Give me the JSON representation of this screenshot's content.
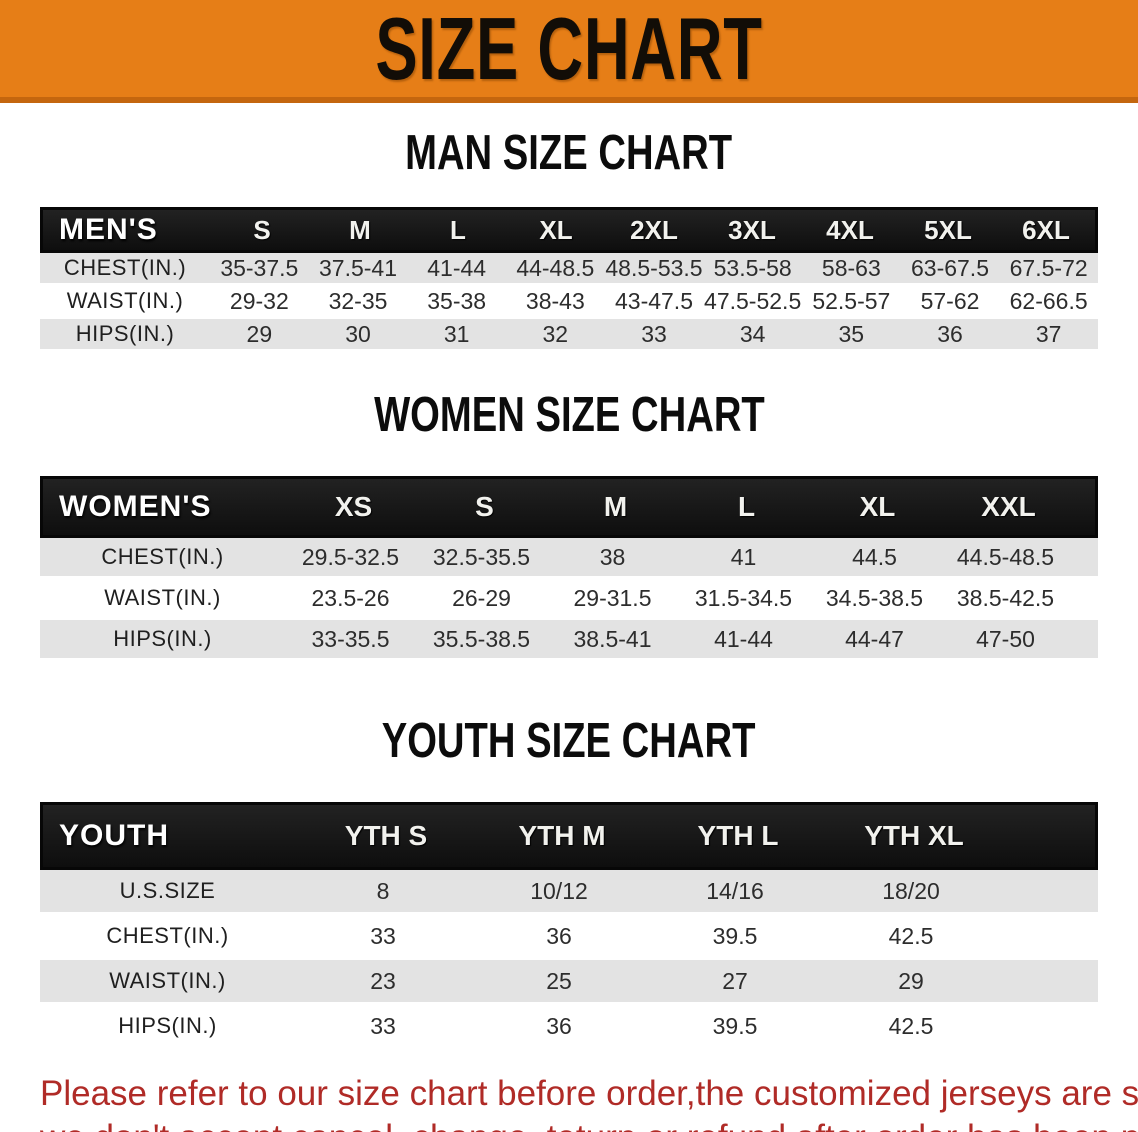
{
  "banner": {
    "title": "SIZE CHART"
  },
  "men": {
    "title": "MAN SIZE CHART",
    "header": [
      "MEN'S",
      "S",
      "M",
      "L",
      "XL",
      "2XL",
      "3XL",
      "4XL",
      "5XL",
      "6XL"
    ],
    "rows": [
      {
        "label": "CHEST(IN.)",
        "values": [
          "35-37.5",
          "37.5-41",
          "41-44",
          "44-48.5",
          "48.5-53.5",
          "53.5-58",
          "58-63",
          "63-67.5",
          "67.5-72"
        ]
      },
      {
        "label": "WAIST(IN.)",
        "values": [
          "29-32",
          "32-35",
          "35-38",
          "38-43",
          "43-47.5",
          "47.5-52.5",
          "52.5-57",
          "57-62",
          "62-66.5"
        ]
      },
      {
        "label": "HIPS(IN.)",
        "values": [
          "29",
          "30",
          "31",
          "32",
          "33",
          "34",
          "35",
          "36",
          "37"
        ]
      }
    ]
  },
  "women": {
    "title": "WOMEN SIZE CHART",
    "header": [
      "WOMEN'S",
      "XS",
      "S",
      "M",
      "L",
      "XL",
      "XXL"
    ],
    "rows": [
      {
        "label": "CHEST(IN.)",
        "values": [
          "29.5-32.5",
          "32.5-35.5",
          "38",
          "41",
          "44.5",
          "44.5-48.5"
        ]
      },
      {
        "label": "WAIST(IN.)",
        "values": [
          "23.5-26",
          "26-29",
          "29-31.5",
          "31.5-34.5",
          "34.5-38.5",
          "38.5-42.5"
        ]
      },
      {
        "label": "HIPS(IN.)",
        "values": [
          "33-35.5",
          "35.5-38.5",
          "38.5-41",
          "41-44",
          "44-47",
          "47-50"
        ]
      }
    ]
  },
  "youth": {
    "title": "YOUTH SIZE CHART",
    "header": [
      "YOUTH",
      "YTH S",
      "YTH M",
      "YTH L",
      "YTH XL"
    ],
    "rows": [
      {
        "label": "U.S.SIZE",
        "values": [
          "8",
          "10/12",
          "14/16",
          "18/20"
        ]
      },
      {
        "label": "CHEST(IN.)",
        "values": [
          "33",
          "36",
          "39.5",
          "42.5"
        ]
      },
      {
        "label": "WAIST(IN.)",
        "values": [
          "23",
          "25",
          "27",
          "29"
        ]
      },
      {
        "label": "HIPS(IN.)",
        "values": [
          "33",
          "36",
          "39.5",
          "42.5"
        ]
      }
    ]
  },
  "footer": {
    "line1": "Please refer to our size chart before order,the customized jerseys are special products,",
    "line2": "we don't accept cancel, change, teturn or refund after order has been placed!"
  },
  "colors": {
    "banner_orange": "#e67e17",
    "banner_edge": "#c4660e",
    "header_black": "#141414",
    "row_gray": "#e3e3e3",
    "footer_red": "#b02b27"
  }
}
